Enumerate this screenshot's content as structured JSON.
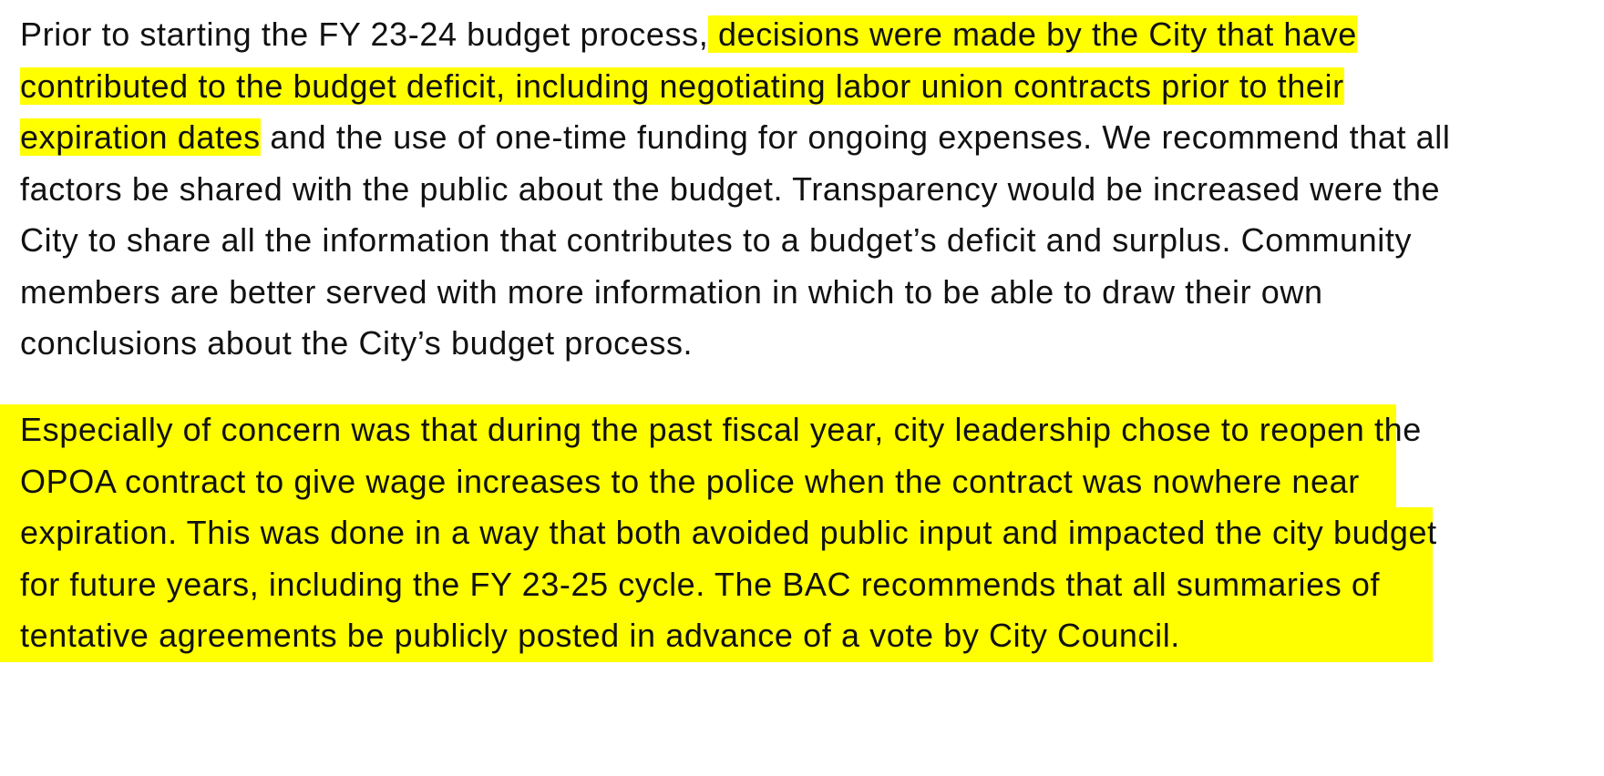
{
  "highlight_color": "#ffff00",
  "paragraph1": {
    "lines": [
      [
        {
          "text": "Prior to starting the FY 23-24 budget process,",
          "highlight": false
        },
        {
          "text": " decisions were made by the City that have ",
          "highlight": true
        }
      ],
      [
        {
          "text": "contributed to the budget deficit, including negotiating labor union contracts prior to their ",
          "highlight": true
        }
      ],
      [
        {
          "text": "expiration dates",
          "highlight": true
        },
        {
          "text": " and the use of one-time funding for ongoing expenses. We recommend that all",
          "highlight": false
        }
      ],
      [
        {
          "text": "factors be shared with the public about the budget. Transparency would be increased were the",
          "highlight": false
        }
      ],
      [
        {
          "text": "City to share all the information that contributes to a budget’s deficit and surplus. Community",
          "highlight": false
        }
      ],
      [
        {
          "text": "members are better served with more information in which to be able to draw their own",
          "highlight": false
        }
      ],
      [
        {
          "text": "conclusions about the City’s budget process.",
          "highlight": false
        }
      ]
    ]
  },
  "paragraph2": {
    "lines": [
      "Especially of concern was that during the past fiscal year, city leadership chose to reopen the",
      "OPOA contract to give wage increases to the police when the contract was nowhere near",
      "expiration. This was done in a way that both avoided public input and impacted the city budget",
      "for future years, including the FY 23-25 cycle. The BAC recommends that all summaries of",
      "tentative agreements be publicly posted in advance of a vote by City Council."
    ]
  }
}
